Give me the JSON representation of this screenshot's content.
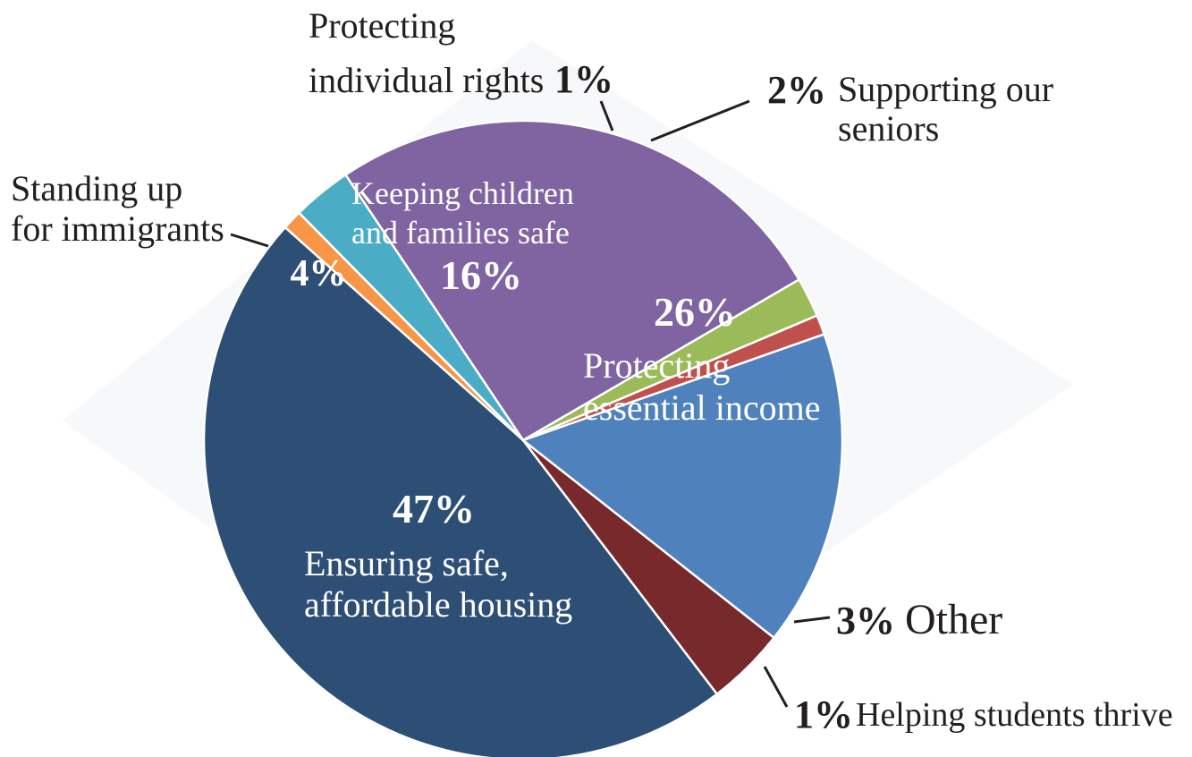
{
  "chart_data": {
    "type": "pie",
    "title": "",
    "start_angle_deg": 138.2,
    "direction": "counterclockwise",
    "slices": [
      {
        "label": "Ensuring safe, affordable housing",
        "label_lines": [
          "Ensuring safe,",
          "affordable housing"
        ],
        "value": 47,
        "value_label": "47%",
        "color": "#2d4e75"
      },
      {
        "label": "Standing up for immigrants",
        "label_lines": [
          "Standing up",
          "for immigrants"
        ],
        "value": 4,
        "value_label": "4%",
        "color": "#77292b"
      },
      {
        "label": "Keeping children and families safe",
        "label_lines": [
          "Keeping children",
          "and families safe"
        ],
        "value": 16,
        "value_label": "16%",
        "color": "#4f81bd"
      },
      {
        "label": "Protecting individual rights",
        "label_lines": [
          "Protecting",
          "individual rights"
        ],
        "value": 1,
        "value_label": "1%",
        "color": "#c0504d"
      },
      {
        "label": "Supporting our seniors",
        "label_lines": [
          "Supporting our",
          "seniors"
        ],
        "value": 2,
        "value_label": "2%",
        "color": "#9bbb59"
      },
      {
        "label": "Protecting essential income",
        "label_lines": [
          "Protecting",
          "essential income"
        ],
        "value": 26,
        "value_label": "26%",
        "color": "#8064a2"
      },
      {
        "label": "Other",
        "label_lines": [
          "Other"
        ],
        "value": 3,
        "value_label": "3%",
        "color": "#4bacc6"
      },
      {
        "label": "Helping students thrive",
        "label_lines": [
          "Helping students thrive"
        ],
        "value": 1,
        "value_label": "1%",
        "color": "#f79646"
      }
    ]
  }
}
